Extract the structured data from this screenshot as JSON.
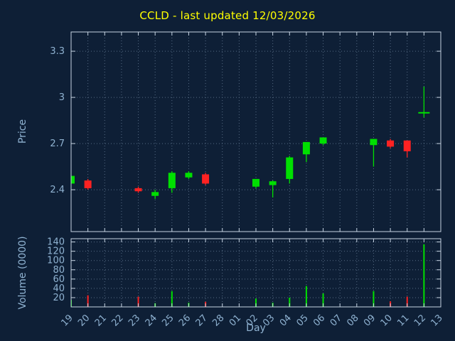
{
  "chart_data": {
    "type": "candlestick",
    "title": "CCLD - last updated 12/03/2026",
    "xlabel": "Day",
    "x_tick_labels": [
      "19",
      "20",
      "21",
      "22",
      "23",
      "24",
      "25",
      "26",
      "27",
      "28",
      "01",
      "02",
      "03",
      "04",
      "05",
      "06",
      "07",
      "08",
      "09",
      "10",
      "11",
      "12",
      "13"
    ],
    "price_panel": {
      "ylabel": "Price",
      "yticks": [
        2.4,
        2.7,
        3,
        3.3
      ],
      "ylim": [
        2.128,
        3.425
      ],
      "grid": true
    },
    "volume_panel": {
      "ylabel": "Volume (0000)",
      "yticks": [
        20,
        40,
        60,
        80,
        100,
        120,
        140
      ],
      "ylim": [
        0,
        147
      ],
      "grid": true
    },
    "colors": {
      "background": "#0e1f36",
      "title": "#ffff00",
      "text": "#8fb2d1",
      "border": "#c6d3e2",
      "grid": "#566b84",
      "up": "#00e000",
      "down": "#ff2222"
    },
    "candles": [
      {
        "day": "19",
        "open": 2.44,
        "high": 2.49,
        "low": 2.44,
        "close": 2.49,
        "volume": 15
      },
      {
        "day": "20",
        "open": 2.46,
        "high": 2.47,
        "low": 2.4,
        "close": 2.41,
        "volume": 25
      },
      {
        "day": "23",
        "open": 2.41,
        "high": 2.42,
        "low": 2.38,
        "close": 2.39,
        "volume": 22
      },
      {
        "day": "24",
        "open": 2.36,
        "high": 2.4,
        "low": 2.34,
        "close": 2.385,
        "volume": 8
      },
      {
        "day": "25",
        "open": 2.41,
        "high": 2.52,
        "low": 2.38,
        "close": 2.51,
        "volume": 34
      },
      {
        "day": "26",
        "open": 2.48,
        "high": 2.52,
        "low": 2.47,
        "close": 2.51,
        "volume": 9
      },
      {
        "day": "27",
        "open": 2.5,
        "high": 2.51,
        "low": 2.43,
        "close": 2.44,
        "volume": 11
      },
      {
        "day": "02",
        "open": 2.42,
        "high": 2.47,
        "low": 2.41,
        "close": 2.47,
        "volume": 18
      },
      {
        "day": "03",
        "open": 2.43,
        "high": 2.46,
        "low": 2.35,
        "close": 2.455,
        "volume": 9
      },
      {
        "day": "04",
        "open": 2.47,
        "high": 2.62,
        "low": 2.44,
        "close": 2.61,
        "volume": 20
      },
      {
        "day": "05",
        "open": 2.63,
        "high": 2.71,
        "low": 2.58,
        "close": 2.71,
        "volume": 45
      },
      {
        "day": "06",
        "open": 2.7,
        "high": 2.74,
        "low": 2.69,
        "close": 2.74,
        "volume": 29
      },
      {
        "day": "09",
        "open": 2.69,
        "high": 2.73,
        "low": 2.55,
        "close": 2.73,
        "volume": 34
      },
      {
        "day": "10",
        "open": 2.72,
        "high": 2.73,
        "low": 2.67,
        "close": 2.68,
        "volume": 12
      },
      {
        "day": "11",
        "open": 2.72,
        "high": 2.72,
        "low": 2.61,
        "close": 2.65,
        "volume": 22
      },
      {
        "day": "12",
        "open": 2.9,
        "high": 3.07,
        "low": 2.87,
        "close": 2.9,
        "volume": 135
      }
    ]
  }
}
